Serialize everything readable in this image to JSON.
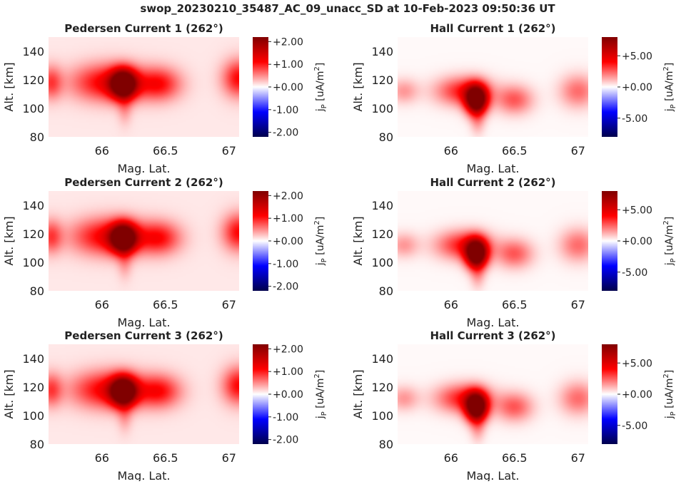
{
  "figure": {
    "title": "swop_20230210_35487_AC_09_unacc_SD at 10-Feb-2023 09:50:36 UT"
  },
  "chart_data": [
    {
      "type": "heatmap",
      "title": "Pedersen Current 1 (262°)",
      "xlabel": "Mag. Lat.",
      "ylabel": "Alt. [km]",
      "xlim": [
        65.58,
        67.08
      ],
      "ylim": [
        80,
        150
      ],
      "xticks": [
        66,
        66.5,
        67
      ],
      "xtick_labels": [
        "66",
        "66.5",
        "67"
      ],
      "yticks": [
        80,
        100,
        120,
        140
      ],
      "ytick_labels": [
        "80",
        "100",
        "120",
        "140"
      ],
      "colorbar": {
        "label": "j_P [uA/m^2]",
        "range": [
          -2.2,
          2.2
        ],
        "ticks": [
          2,
          1,
          0,
          -1,
          -2
        ],
        "tick_labels": [
          "+2.00",
          "+1.00",
          "+0.00",
          "-1.00",
          "-2.00"
        ],
        "colormap": "seismic"
      },
      "blobs": [
        {
          "lat": 66.17,
          "alt": 117,
          "peak": 2.6,
          "sigma_lat": 0.07,
          "sigma_alt": 7
        },
        {
          "lat": 66.05,
          "alt": 118,
          "peak": 1.1,
          "sigma_lat": 0.2,
          "sigma_alt": 9
        },
        {
          "lat": 66.45,
          "alt": 117,
          "peak": 0.9,
          "sigma_lat": 0.12,
          "sigma_alt": 8
        },
        {
          "lat": 65.6,
          "alt": 118,
          "peak": 0.7,
          "sigma_lat": 0.06,
          "sigma_alt": 8
        },
        {
          "lat": 67.08,
          "alt": 121,
          "peak": 1.0,
          "sigma_lat": 0.09,
          "sigma_alt": 9
        },
        {
          "lat": 66.18,
          "alt": 100,
          "peak": 0.3,
          "sigma_lat": 0.04,
          "sigma_alt": 8
        }
      ]
    },
    {
      "type": "heatmap",
      "title": "Hall Current 1 (262°)",
      "xlabel": "Mag. Lat.",
      "ylabel": "Alt. [km]",
      "xlim": [
        65.58,
        67.08
      ],
      "ylim": [
        80,
        150
      ],
      "xticks": [
        66,
        66.5,
        67
      ],
      "xtick_labels": [
        "66",
        "66.5",
        "67"
      ],
      "yticks": [
        80,
        100,
        120,
        140
      ],
      "ytick_labels": [
        "80",
        "100",
        "120",
        "140"
      ],
      "colorbar": {
        "label": "j_P [uA/m^2]",
        "range": [
          -8,
          8
        ],
        "ticks": [
          5,
          0,
          -5
        ],
        "tick_labels": [
          "+5.00",
          "+0.00",
          "-5.00"
        ],
        "colormap": "seismic"
      },
      "blobs": [
        {
          "lat": 66.2,
          "alt": 106,
          "peak": 10,
          "sigma_lat": 0.06,
          "sigma_alt": 7
        },
        {
          "lat": 66.1,
          "alt": 112,
          "peak": 3.5,
          "sigma_lat": 0.15,
          "sigma_alt": 7
        },
        {
          "lat": 66.5,
          "alt": 106,
          "peak": 2.5,
          "sigma_lat": 0.1,
          "sigma_alt": 7
        },
        {
          "lat": 65.63,
          "alt": 112,
          "peak": 1.5,
          "sigma_lat": 0.08,
          "sigma_alt": 6
        },
        {
          "lat": 67.0,
          "alt": 112,
          "peak": 2.2,
          "sigma_lat": 0.1,
          "sigma_alt": 8
        },
        {
          "lat": 66.21,
          "alt": 91,
          "peak": 1.2,
          "sigma_lat": 0.04,
          "sigma_alt": 7
        }
      ]
    },
    {
      "type": "heatmap",
      "title": "Pedersen Current 2 (262°)",
      "xlabel": "Mag. Lat.",
      "ylabel": "Alt. [km]",
      "xlim": [
        65.58,
        67.08
      ],
      "ylim": [
        80,
        150
      ],
      "xticks": [
        66,
        66.5,
        67
      ],
      "xtick_labels": [
        "66",
        "66.5",
        "67"
      ],
      "yticks": [
        80,
        100,
        120,
        140
      ],
      "ytick_labels": [
        "80",
        "100",
        "120",
        "140"
      ],
      "colorbar": {
        "label": "j_P [uA/m^2]",
        "range": [
          -2.2,
          2.2
        ],
        "ticks": [
          2,
          1,
          0,
          -1,
          -2
        ],
        "tick_labels": [
          "+2.00",
          "+1.00",
          "+0.00",
          "-1.00",
          "-2.00"
        ],
        "colormap": "seismic"
      },
      "blobs": [
        {
          "lat": 66.17,
          "alt": 117,
          "peak": 2.6,
          "sigma_lat": 0.07,
          "sigma_alt": 7
        },
        {
          "lat": 66.05,
          "alt": 118,
          "peak": 1.1,
          "sigma_lat": 0.2,
          "sigma_alt": 9
        },
        {
          "lat": 66.45,
          "alt": 117,
          "peak": 0.9,
          "sigma_lat": 0.12,
          "sigma_alt": 8
        },
        {
          "lat": 65.6,
          "alt": 118,
          "peak": 0.7,
          "sigma_lat": 0.06,
          "sigma_alt": 8
        },
        {
          "lat": 67.08,
          "alt": 121,
          "peak": 1.0,
          "sigma_lat": 0.09,
          "sigma_alt": 9
        },
        {
          "lat": 66.18,
          "alt": 100,
          "peak": 0.3,
          "sigma_lat": 0.04,
          "sigma_alt": 8
        }
      ]
    },
    {
      "type": "heatmap",
      "title": "Hall Current 2 (262°)",
      "xlabel": "Mag. Lat.",
      "ylabel": "Alt. [km]",
      "xlim": [
        65.58,
        67.08
      ],
      "ylim": [
        80,
        150
      ],
      "xticks": [
        66,
        66.5,
        67
      ],
      "xtick_labels": [
        "66",
        "66.5",
        "67"
      ],
      "yticks": [
        80,
        100,
        120,
        140
      ],
      "ytick_labels": [
        "80",
        "100",
        "120",
        "140"
      ],
      "colorbar": {
        "label": "j_P [uA/m^2]",
        "range": [
          -8,
          8
        ],
        "ticks": [
          5,
          0,
          -5
        ],
        "tick_labels": [
          "+5.00",
          "+0.00",
          "-5.00"
        ],
        "colormap": "seismic"
      },
      "blobs": [
        {
          "lat": 66.2,
          "alt": 106,
          "peak": 10,
          "sigma_lat": 0.06,
          "sigma_alt": 7
        },
        {
          "lat": 66.1,
          "alt": 112,
          "peak": 3.5,
          "sigma_lat": 0.15,
          "sigma_alt": 7
        },
        {
          "lat": 66.5,
          "alt": 106,
          "peak": 2.5,
          "sigma_lat": 0.1,
          "sigma_alt": 7
        },
        {
          "lat": 65.63,
          "alt": 112,
          "peak": 1.5,
          "sigma_lat": 0.08,
          "sigma_alt": 6
        },
        {
          "lat": 67.0,
          "alt": 112,
          "peak": 2.2,
          "sigma_lat": 0.1,
          "sigma_alt": 8
        },
        {
          "lat": 66.21,
          "alt": 91,
          "peak": 1.2,
          "sigma_lat": 0.04,
          "sigma_alt": 7
        }
      ]
    },
    {
      "type": "heatmap",
      "title": "Pedersen Current 3 (262°)",
      "xlabel": "Mag. Lat.",
      "ylabel": "Alt. [km]",
      "xlim": [
        65.58,
        67.08
      ],
      "ylim": [
        80,
        150
      ],
      "xticks": [
        66,
        66.5,
        67
      ],
      "xtick_labels": [
        "66",
        "66.5",
        "67"
      ],
      "yticks": [
        80,
        100,
        120,
        140
      ],
      "ytick_labels": [
        "80",
        "100",
        "120",
        "140"
      ],
      "colorbar": {
        "label": "j_P [uA/m^2]",
        "range": [
          -2.2,
          2.2
        ],
        "ticks": [
          2,
          1,
          0,
          -1,
          -2
        ],
        "tick_labels": [
          "+2.00",
          "+1.00",
          "+0.00",
          "-1.00",
          "-2.00"
        ],
        "colormap": "seismic"
      },
      "blobs": [
        {
          "lat": 66.17,
          "alt": 117,
          "peak": 2.6,
          "sigma_lat": 0.07,
          "sigma_alt": 7
        },
        {
          "lat": 66.05,
          "alt": 118,
          "peak": 1.1,
          "sigma_lat": 0.2,
          "sigma_alt": 9
        },
        {
          "lat": 66.45,
          "alt": 117,
          "peak": 0.9,
          "sigma_lat": 0.12,
          "sigma_alt": 8
        },
        {
          "lat": 65.6,
          "alt": 118,
          "peak": 0.7,
          "sigma_lat": 0.06,
          "sigma_alt": 8
        },
        {
          "lat": 67.08,
          "alt": 121,
          "peak": 1.0,
          "sigma_lat": 0.09,
          "sigma_alt": 9
        },
        {
          "lat": 66.18,
          "alt": 100,
          "peak": 0.3,
          "sigma_lat": 0.04,
          "sigma_alt": 8
        }
      ]
    },
    {
      "type": "heatmap",
      "title": "Hall Current 3 (262°)",
      "xlabel": "Mag. Lat.",
      "ylabel": "Alt. [km]",
      "xlim": [
        65.58,
        67.08
      ],
      "ylim": [
        80,
        150
      ],
      "xticks": [
        66,
        66.5,
        67
      ],
      "xtick_labels": [
        "66",
        "66.5",
        "67"
      ],
      "yticks": [
        80,
        100,
        120,
        140
      ],
      "ytick_labels": [
        "80",
        "100",
        "120",
        "140"
      ],
      "colorbar": {
        "label": "j_P [uA/m^2]",
        "range": [
          -8,
          8
        ],
        "ticks": [
          5,
          0,
          -5
        ],
        "tick_labels": [
          "+5.00",
          "+0.00",
          "-5.00"
        ],
        "colormap": "seismic"
      },
      "blobs": [
        {
          "lat": 66.2,
          "alt": 106,
          "peak": 10,
          "sigma_lat": 0.06,
          "sigma_alt": 7
        },
        {
          "lat": 66.1,
          "alt": 112,
          "peak": 3.5,
          "sigma_lat": 0.15,
          "sigma_alt": 7
        },
        {
          "lat": 66.5,
          "alt": 106,
          "peak": 2.5,
          "sigma_lat": 0.1,
          "sigma_alt": 7
        },
        {
          "lat": 65.63,
          "alt": 112,
          "peak": 1.5,
          "sigma_lat": 0.08,
          "sigma_alt": 6
        },
        {
          "lat": 67.0,
          "alt": 112,
          "peak": 2.2,
          "sigma_lat": 0.1,
          "sigma_alt": 8
        },
        {
          "lat": 66.21,
          "alt": 91,
          "peak": 1.2,
          "sigma_lat": 0.04,
          "sigma_alt": 7
        }
      ]
    }
  ]
}
